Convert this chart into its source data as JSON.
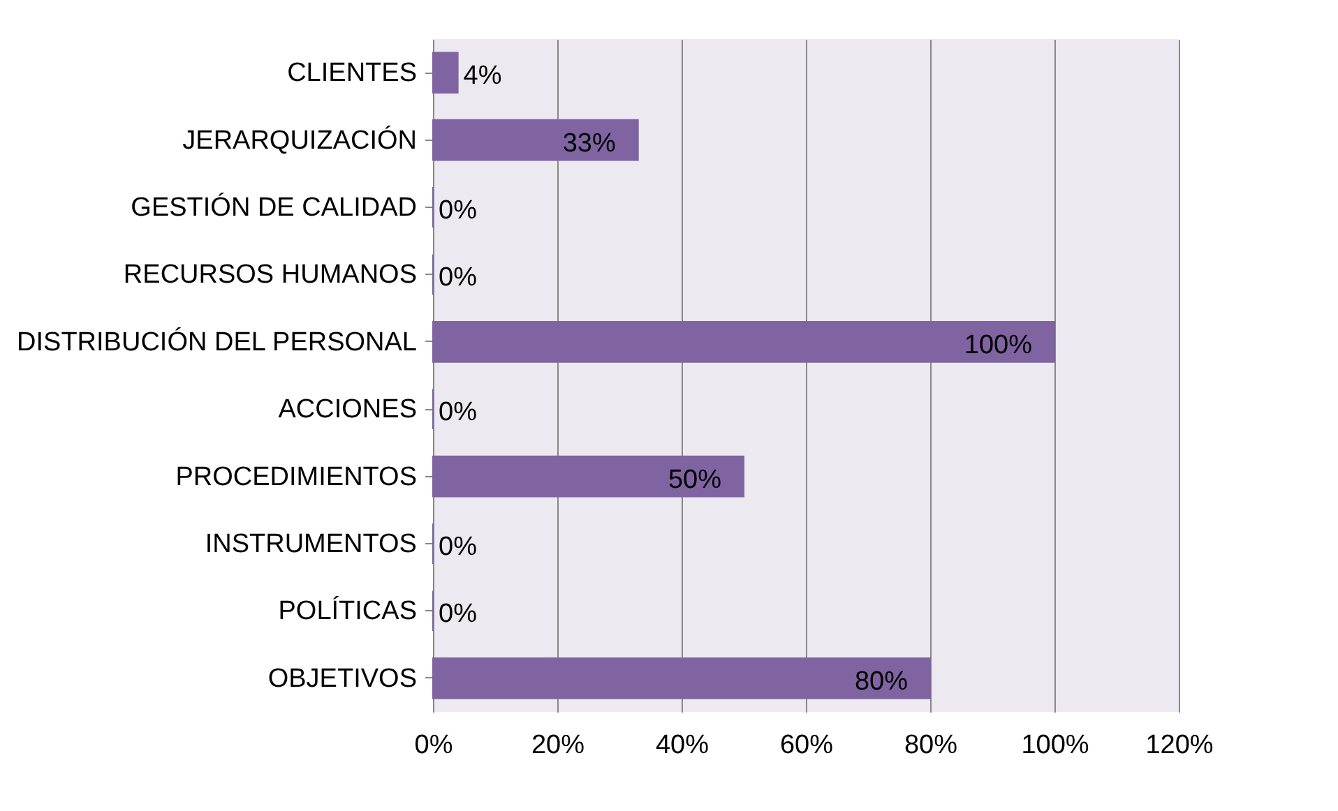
{
  "chart_data": {
    "type": "bar",
    "orientation": "horizontal",
    "categories": [
      "CLIENTES",
      "JERARQUIZACIÓN",
      "GESTIÓN DE CALIDAD",
      "RECURSOS HUMANOS",
      "DISTRIBUCIÓN DEL PERSONAL",
      "ACCIONES",
      "PROCEDIMIENTOS",
      "INSTRUMENTOS",
      "POLÍTICAS",
      "OBJETIVOS"
    ],
    "values": [
      4,
      33,
      0,
      0,
      100,
      0,
      50,
      0,
      0,
      80
    ],
    "value_labels": [
      "4%",
      "33%",
      "0%",
      "0%",
      "100%",
      "0%",
      "50%",
      "0%",
      "0%",
      "80%"
    ],
    "color": "#8064a2",
    "xlim": [
      0,
      120
    ],
    "xticks": [
      {
        "value": 0,
        "label": "0%"
      },
      {
        "value": 20,
        "label": "20%"
      },
      {
        "value": 40,
        "label": "40%"
      },
      {
        "value": 60,
        "label": "60%"
      },
      {
        "value": 80,
        "label": "80%"
      },
      {
        "value": 100,
        "label": "100%"
      },
      {
        "value": 120,
        "label": "120%"
      }
    ],
    "grid": "x"
  }
}
